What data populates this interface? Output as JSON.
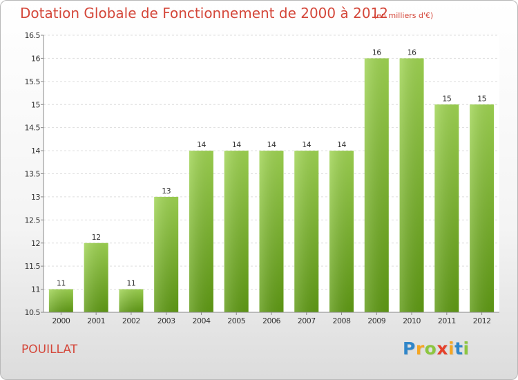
{
  "chart_data": {
    "type": "bar",
    "title": "Dotation Globale de Fonctionnement de 2000 à 2012",
    "subtitle": "(en milliers d'€)",
    "categories": [
      "2000",
      "2001",
      "2002",
      "2003",
      "2004",
      "2005",
      "2006",
      "2007",
      "2008",
      "2009",
      "2010",
      "2011",
      "2012"
    ],
    "values": [
      11,
      12,
      11,
      13,
      14,
      14,
      14,
      14,
      14,
      16,
      16,
      15,
      15
    ],
    "value_labels": [
      "11",
      "12",
      "11",
      "13",
      "14",
      "14",
      "14",
      "14",
      "14",
      "16",
      "16",
      "15",
      "15"
    ],
    "ylim": [
      10.5,
      16.5
    ],
    "yticks": [
      "10.5",
      "11",
      "11.5",
      "12",
      "12.5",
      "13",
      "13.5",
      "14",
      "14.5",
      "15",
      "15.5",
      "16",
      "16.5"
    ],
    "xlabel": "",
    "ylabel": "",
    "grid": true,
    "bar_color": "#7cb534"
  },
  "commune": "POUILLAT",
  "logo": {
    "letters": [
      "P",
      "r",
      "o",
      "x",
      "i",
      "t",
      "i"
    ],
    "colors": [
      "#2f86c9",
      "#f5a623",
      "#8cc63f",
      "#e5402a",
      "#f5a623",
      "#2f86c9",
      "#8cc63f"
    ]
  }
}
